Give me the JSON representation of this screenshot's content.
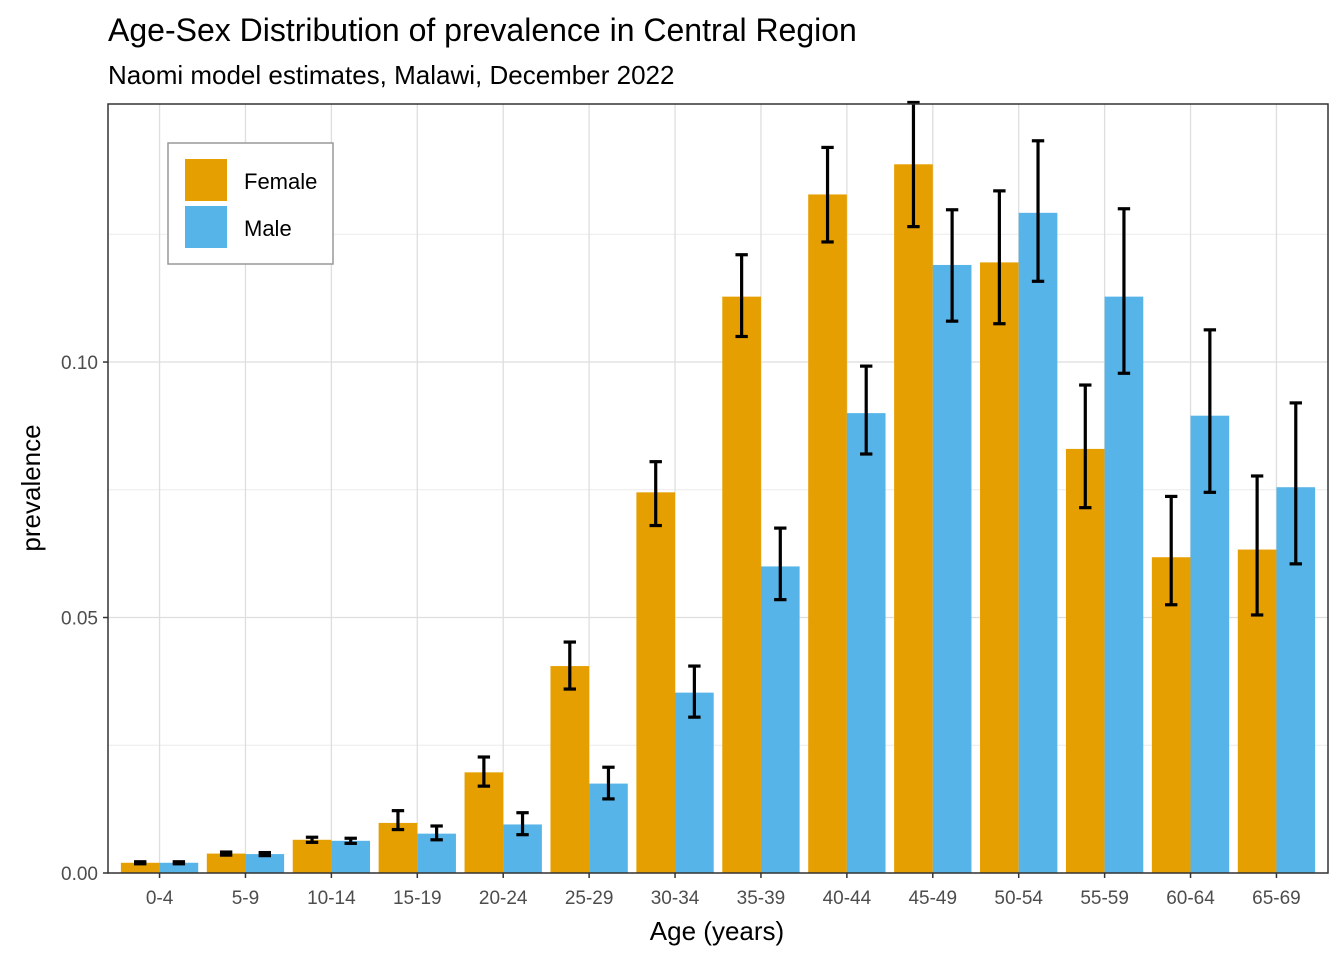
{
  "chart_data": {
    "type": "bar",
    "title": "Age-Sex Distribution of prevalence in Central Region",
    "subtitle": "Naomi model estimates, Malawi, December 2022",
    "xlabel": "Age (years)",
    "ylabel": "prevalence",
    "ylim": [
      0,
      0.1505
    ],
    "yticks": [
      0.0,
      0.05,
      0.1
    ],
    "ytick_labels": [
      "0.00",
      "0.05",
      "0.10"
    ],
    "grid": true,
    "legend_position": "top-left",
    "categories": [
      "0-4",
      "5-9",
      "10-14",
      "15-19",
      "20-24",
      "25-29",
      "30-34",
      "35-39",
      "40-44",
      "45-49",
      "50-54",
      "55-59",
      "60-64",
      "65-69"
    ],
    "series": [
      {
        "name": "Female",
        "color": "#E69F00",
        "values": [
          0.002,
          0.0038,
          0.0065,
          0.0098,
          0.0197,
          0.0405,
          0.0745,
          0.1128,
          0.1328,
          0.1387,
          0.1195,
          0.083,
          0.0618,
          0.0633
        ],
        "lower": [
          0.0018,
          0.0035,
          0.006,
          0.0085,
          0.017,
          0.036,
          0.068,
          0.105,
          0.1235,
          0.1265,
          0.1075,
          0.0715,
          0.0525,
          0.0505
        ],
        "upper": [
          0.0022,
          0.0041,
          0.007,
          0.0122,
          0.0227,
          0.0452,
          0.0805,
          0.121,
          0.142,
          0.1508,
          0.1335,
          0.0955,
          0.0737,
          0.0777
        ]
      },
      {
        "name": "Male",
        "color": "#56B4E9",
        "values": [
          0.002,
          0.0037,
          0.0063,
          0.0077,
          0.0095,
          0.0175,
          0.0353,
          0.06,
          0.09,
          0.119,
          0.1292,
          0.1128,
          0.0895,
          0.0755
        ],
        "lower": [
          0.0018,
          0.0034,
          0.0058,
          0.0065,
          0.0075,
          0.0145,
          0.0305,
          0.0535,
          0.082,
          0.108,
          0.1158,
          0.0978,
          0.0745,
          0.0605
        ],
        "upper": [
          0.0022,
          0.004,
          0.0068,
          0.0092,
          0.0118,
          0.0207,
          0.0405,
          0.0675,
          0.0992,
          0.1298,
          0.1433,
          0.13,
          0.1063,
          0.092
        ]
      }
    ]
  }
}
